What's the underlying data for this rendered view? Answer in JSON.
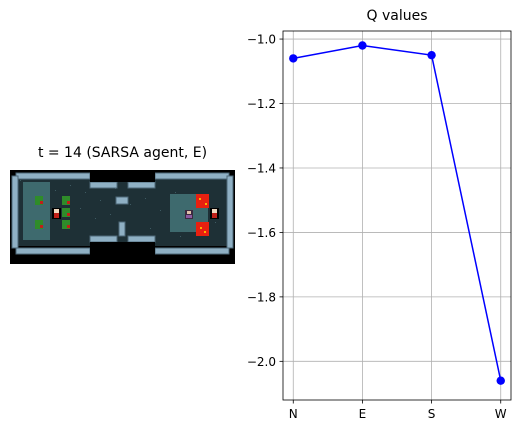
{
  "env_panel": {
    "title": "t = 14 (SARSA agent, E)"
  },
  "chart_data": {
    "type": "line",
    "title": "Q values",
    "xlabel": "",
    "ylabel": "",
    "categories": [
      "N",
      "E",
      "S",
      "W"
    ],
    "series": [
      {
        "values": [
          -1.06,
          -1.02,
          -1.05,
          -2.06
        ],
        "color": "#0000ff"
      }
    ],
    "ylim": [
      -2.12,
      -0.975
    ],
    "yticks": [
      -1.0,
      -1.2,
      -1.4,
      -1.6,
      -1.8,
      -2.0
    ],
    "ytick_labels": [
      "−1.0",
      "−1.2",
      "−1.4",
      "−1.6",
      "−1.8",
      "−2.0"
    ],
    "grid": true
  }
}
